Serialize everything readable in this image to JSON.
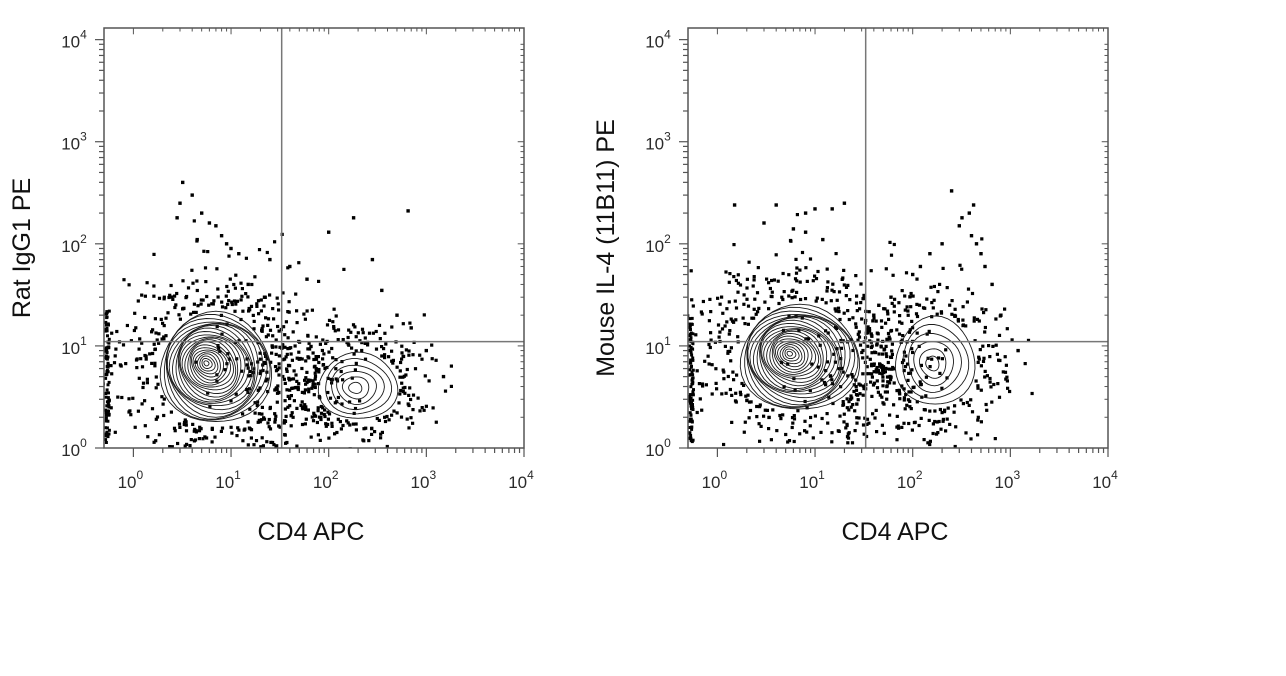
{
  "chart_data": [
    {
      "type": "scatter",
      "subtype": "flow-cytometry-contour-dot-plot",
      "xlabel": "CD4 APC",
      "ylabel": "Rat IgG1 PE",
      "xscale": "log",
      "yscale": "log",
      "xlim": [
        0.5,
        10000
      ],
      "ylim": [
        1,
        13000
      ],
      "xticks": [
        {
          "base": "10",
          "exp": "0"
        },
        {
          "base": "10",
          "exp": "1"
        },
        {
          "base": "10",
          "exp": "2"
        },
        {
          "base": "10",
          "exp": "3"
        },
        {
          "base": "10",
          "exp": "4"
        }
      ],
      "yticks": [
        {
          "base": "10",
          "exp": "0"
        },
        {
          "base": "10",
          "exp": "1"
        },
        {
          "base": "10",
          "exp": "2"
        },
        {
          "base": "10",
          "exp": "3"
        },
        {
          "base": "10",
          "exp": "4"
        }
      ],
      "quadrant_gate": {
        "x": 33,
        "y": 11
      },
      "populations": [
        {
          "center": [
            7,
            6
          ],
          "spread_x_decades": 0.42,
          "spread_y_decades": 0.4,
          "peak_density": "high"
        },
        {
          "center": [
            200,
            4
          ],
          "spread_x_decades": 0.3,
          "spread_y_decades": 0.24,
          "peak_density": "medium"
        }
      ],
      "outlier_points": [
        [
          3.2,
          400
        ],
        [
          4,
          300
        ],
        [
          3,
          250
        ],
        [
          5,
          200
        ],
        [
          6,
          160
        ],
        [
          2.8,
          180
        ],
        [
          7,
          150
        ],
        [
          8,
          120
        ],
        [
          9,
          100
        ],
        [
          10,
          90
        ],
        [
          4.5,
          110
        ],
        [
          12,
          80
        ],
        [
          180,
          180
        ],
        [
          650,
          210
        ],
        [
          100,
          130
        ],
        [
          280,
          70
        ],
        [
          350,
          35
        ],
        [
          500,
          20
        ],
        [
          700,
          15
        ],
        [
          1500,
          5
        ],
        [
          1000,
          9
        ],
        [
          60,
          45
        ],
        [
          40,
          60
        ],
        [
          25,
          70
        ],
        [
          22,
          30
        ],
        [
          15,
          40
        ]
      ],
      "grid": false,
      "legend": "none"
    },
    {
      "type": "scatter",
      "subtype": "flow-cytometry-contour-dot-plot",
      "xlabel": "CD4 APC",
      "ylabel": "Mouse IL-4 (11B11) PE",
      "xscale": "log",
      "yscale": "log",
      "xlim": [
        0.5,
        10000
      ],
      "ylim": [
        1,
        13000
      ],
      "xticks": [
        {
          "base": "10",
          "exp": "0"
        },
        {
          "base": "10",
          "exp": "1"
        },
        {
          "base": "10",
          "exp": "2"
        },
        {
          "base": "10",
          "exp": "3"
        },
        {
          "base": "10",
          "exp": "4"
        }
      ],
      "yticks": [
        {
          "base": "10",
          "exp": "0"
        },
        {
          "base": "10",
          "exp": "1"
        },
        {
          "base": "10",
          "exp": "2"
        },
        {
          "base": "10",
          "exp": "3"
        },
        {
          "base": "10",
          "exp": "4"
        }
      ],
      "quadrant_gate": {
        "x": 33,
        "y": 11
      },
      "populations": [
        {
          "center": [
            7,
            7.5
          ],
          "spread_x_decades": 0.45,
          "spread_y_decades": 0.38,
          "peak_density": "high"
        },
        {
          "center": [
            170,
            7
          ],
          "spread_x_decades": 0.3,
          "spread_y_decades": 0.32,
          "peak_density": "medium"
        }
      ],
      "outlier_points": [
        [
          1.5,
          240
        ],
        [
          4,
          240
        ],
        [
          8,
          200
        ],
        [
          10,
          220
        ],
        [
          15,
          220
        ],
        [
          20,
          250
        ],
        [
          3,
          160
        ],
        [
          6,
          140
        ],
        [
          8,
          130
        ],
        [
          12,
          110
        ],
        [
          250,
          330
        ],
        [
          420,
          240
        ],
        [
          380,
          200
        ],
        [
          320,
          180
        ],
        [
          300,
          150
        ],
        [
          400,
          120
        ],
        [
          450,
          100
        ],
        [
          500,
          80
        ],
        [
          550,
          60
        ],
        [
          650,
          40
        ],
        [
          800,
          20
        ],
        [
          1200,
          9
        ],
        [
          200,
          100
        ],
        [
          150,
          80
        ],
        [
          120,
          60
        ],
        [
          100,
          50
        ],
        [
          60,
          30
        ],
        [
          45,
          25
        ],
        [
          40,
          20
        ]
      ],
      "grid": false,
      "legend": "none"
    }
  ],
  "colors": {
    "contour": "#1a1a1a",
    "dots": "#000000",
    "gate": "#777777",
    "frame": "#555555"
  }
}
